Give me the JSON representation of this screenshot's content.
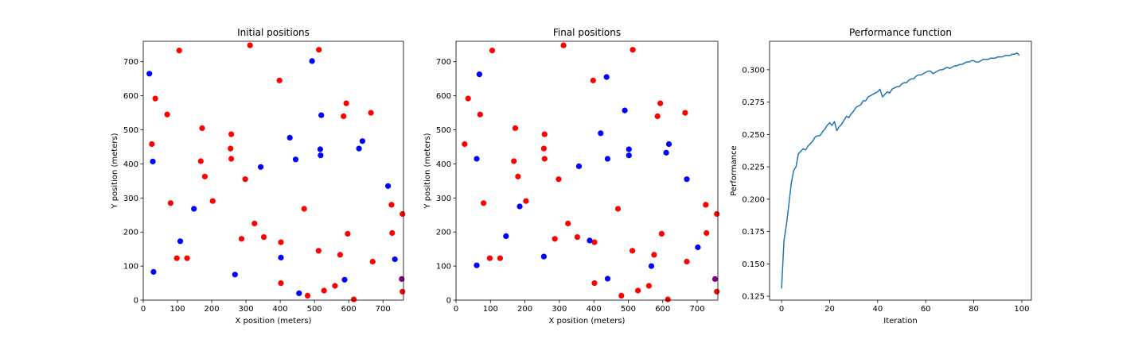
{
  "chart_data": [
    {
      "type": "scatter",
      "title": "Initial positions",
      "xlabel": "X position (meters)",
      "ylabel": "Y position (meters)",
      "xlim": [
        0,
        760
      ],
      "ylim": [
        0,
        760
      ],
      "xticks": [
        0,
        100,
        200,
        300,
        400,
        500,
        600,
        700
      ],
      "yticks": [
        0,
        100,
        200,
        300,
        400,
        500,
        600,
        700
      ],
      "grid": false,
      "series": [
        {
          "color": "#ff0000",
          "points": [
            [
              25,
              458
            ],
            [
              35,
              592
            ],
            [
              70,
              545
            ],
            [
              80,
              285
            ],
            [
              98,
              123
            ],
            [
              105,
              733
            ],
            [
              128,
              123
            ],
            [
              168,
              408
            ],
            [
              172,
              505
            ],
            [
              180,
              363
            ],
            [
              203,
              291
            ],
            [
              255,
              445
            ],
            [
              257,
              487
            ],
            [
              257,
              415
            ],
            [
              287,
              180
            ],
            [
              298,
              355
            ],
            [
              312,
              748
            ],
            [
              325,
              225
            ],
            [
              352,
              185
            ],
            [
              398,
              645
            ],
            [
              402,
              170
            ],
            [
              402,
              50
            ],
            [
              470,
              268
            ],
            [
              480,
              13
            ],
            [
              512,
              145
            ],
            [
              513,
              735
            ],
            [
              528,
              28
            ],
            [
              560,
              42
            ],
            [
              575,
              133
            ],
            [
              585,
              540
            ],
            [
              593,
              578
            ],
            [
              597,
              195
            ],
            [
              615,
              2
            ],
            [
              665,
              550
            ],
            [
              670,
              113
            ],
            [
              725,
              280
            ],
            [
              727,
              197
            ],
            [
              757,
              253
            ],
            [
              757,
              25
            ]
          ]
        },
        {
          "color": "#0000ff",
          "points": [
            [
              18,
              665
            ],
            [
              28,
              407
            ],
            [
              30,
              83
            ],
            [
              108,
              173
            ],
            [
              148,
              268
            ],
            [
              268,
              75
            ],
            [
              343,
              391
            ],
            [
              402,
              125
            ],
            [
              428,
              477
            ],
            [
              445,
              413
            ],
            [
              455,
              20
            ],
            [
              493,
              702
            ],
            [
              517,
              443
            ],
            [
              518,
              425
            ],
            [
              520,
              543
            ],
            [
              588,
              60
            ],
            [
              630,
              445
            ],
            [
              640,
              467
            ],
            [
              715,
              335
            ],
            [
              735,
              120
            ]
          ]
        },
        {
          "color": "#800080",
          "points": [
            [
              755,
              62
            ]
          ]
        }
      ]
    },
    {
      "type": "scatter",
      "title": "Final positions",
      "xlabel": "X position (meters)",
      "ylabel": "Y position (meters)",
      "xlim": [
        0,
        760
      ],
      "ylim": [
        0,
        760
      ],
      "xticks": [
        0,
        100,
        200,
        300,
        400,
        500,
        600,
        700
      ],
      "yticks": [
        0,
        100,
        200,
        300,
        400,
        500,
        600,
        700
      ],
      "grid": false,
      "series": [
        {
          "color": "#ff0000",
          "points": [
            [
              25,
              458
            ],
            [
              35,
              592
            ],
            [
              70,
              545
            ],
            [
              80,
              285
            ],
            [
              98,
              123
            ],
            [
              105,
              733
            ],
            [
              128,
              123
            ],
            [
              168,
              408
            ],
            [
              172,
              505
            ],
            [
              180,
              363
            ],
            [
              203,
              291
            ],
            [
              255,
              445
            ],
            [
              257,
              487
            ],
            [
              257,
              415
            ],
            [
              287,
              180
            ],
            [
              298,
              355
            ],
            [
              312,
              748
            ],
            [
              325,
              225
            ],
            [
              352,
              185
            ],
            [
              398,
              645
            ],
            [
              402,
              170
            ],
            [
              402,
              50
            ],
            [
              470,
              268
            ],
            [
              480,
              13
            ],
            [
              512,
              145
            ],
            [
              513,
              735
            ],
            [
              528,
              28
            ],
            [
              560,
              42
            ],
            [
              575,
              133
            ],
            [
              585,
              540
            ],
            [
              593,
              578
            ],
            [
              597,
              195
            ],
            [
              615,
              2
            ],
            [
              665,
              550
            ],
            [
              670,
              113
            ],
            [
              725,
              280
            ],
            [
              727,
              197
            ],
            [
              757,
              253
            ],
            [
              757,
              25
            ]
          ]
        },
        {
          "color": "#0000ff",
          "points": [
            [
              60,
              415
            ],
            [
              60,
              102
            ],
            [
              68,
              663
            ],
            [
              145,
              188
            ],
            [
              185,
              275
            ],
            [
              255,
              128
            ],
            [
              357,
              393
            ],
            [
              388,
              175
            ],
            [
              420,
              490
            ],
            [
              437,
              655
            ],
            [
              440,
              415
            ],
            [
              440,
              63
            ],
            [
              490,
              557
            ],
            [
              502,
              443
            ],
            [
              502,
              425
            ],
            [
              567,
              100
            ],
            [
              610,
              433
            ],
            [
              618,
              458
            ],
            [
              670,
              355
            ],
            [
              702,
              155
            ]
          ]
        },
        {
          "color": "#800080",
          "points": [
            [
              752,
              62
            ]
          ]
        }
      ]
    },
    {
      "type": "line",
      "title": "Performance function",
      "xlabel": "Iteration",
      "ylabel": "Performance",
      "xlim": [
        -5,
        104
      ],
      "ylim": [
        0.122,
        0.322
      ],
      "xticks": [
        0,
        20,
        40,
        60,
        80,
        100
      ],
      "yticks": [
        0.125,
        0.15,
        0.175,
        0.2,
        0.225,
        0.25,
        0.275,
        0.3
      ],
      "ytick_labels": [
        "0.125",
        "0.150",
        "0.175",
        "0.200",
        "0.225",
        "0.250",
        "0.275",
        "0.300"
      ],
      "grid": false,
      "series": [
        {
          "color": "#1f77b4",
          "x": [
            0,
            1,
            2,
            3,
            4,
            5,
            6,
            7,
            8,
            9,
            10,
            11,
            12,
            13,
            14,
            15,
            16,
            17,
            18,
            19,
            20,
            21,
            22,
            23,
            24,
            25,
            26,
            27,
            28,
            29,
            30,
            31,
            32,
            33,
            34,
            35,
            36,
            37,
            38,
            39,
            40,
            41,
            42,
            43,
            44,
            45,
            46,
            47,
            48,
            49,
            50,
            51,
            52,
            53,
            54,
            55,
            56,
            57,
            58,
            59,
            60,
            61,
            62,
            63,
            64,
            65,
            66,
            67,
            68,
            69,
            70,
            71,
            72,
            73,
            74,
            75,
            76,
            77,
            78,
            79,
            80,
            81,
            82,
            83,
            84,
            85,
            86,
            87,
            88,
            89,
            90,
            91,
            92,
            93,
            94,
            95,
            96,
            97,
            98,
            99
          ],
          "y": [
            0.131,
            0.168,
            0.18,
            0.195,
            0.212,
            0.222,
            0.225,
            0.235,
            0.237,
            0.239,
            0.238,
            0.241,
            0.243,
            0.245,
            0.248,
            0.249,
            0.249,
            0.252,
            0.254,
            0.257,
            0.259,
            0.257,
            0.26,
            0.253,
            0.256,
            0.258,
            0.261,
            0.264,
            0.263,
            0.266,
            0.268,
            0.271,
            0.272,
            0.273,
            0.276,
            0.276,
            0.279,
            0.28,
            0.281,
            0.282,
            0.283,
            0.285,
            0.279,
            0.281,
            0.283,
            0.282,
            0.285,
            0.286,
            0.287,
            0.287,
            0.289,
            0.29,
            0.29,
            0.292,
            0.293,
            0.293,
            0.295,
            0.296,
            0.296,
            0.297,
            0.298,
            0.299,
            0.299,
            0.297,
            0.298,
            0.299,
            0.3,
            0.3,
            0.301,
            0.302,
            0.301,
            0.302,
            0.303,
            0.303,
            0.304,
            0.304,
            0.305,
            0.306,
            0.306,
            0.307,
            0.307,
            0.306,
            0.306,
            0.307,
            0.308,
            0.308,
            0.308,
            0.309,
            0.309,
            0.309,
            0.31,
            0.31,
            0.31,
            0.311,
            0.311,
            0.311,
            0.312,
            0.312,
            0.313,
            0.311
          ]
        }
      ]
    }
  ]
}
